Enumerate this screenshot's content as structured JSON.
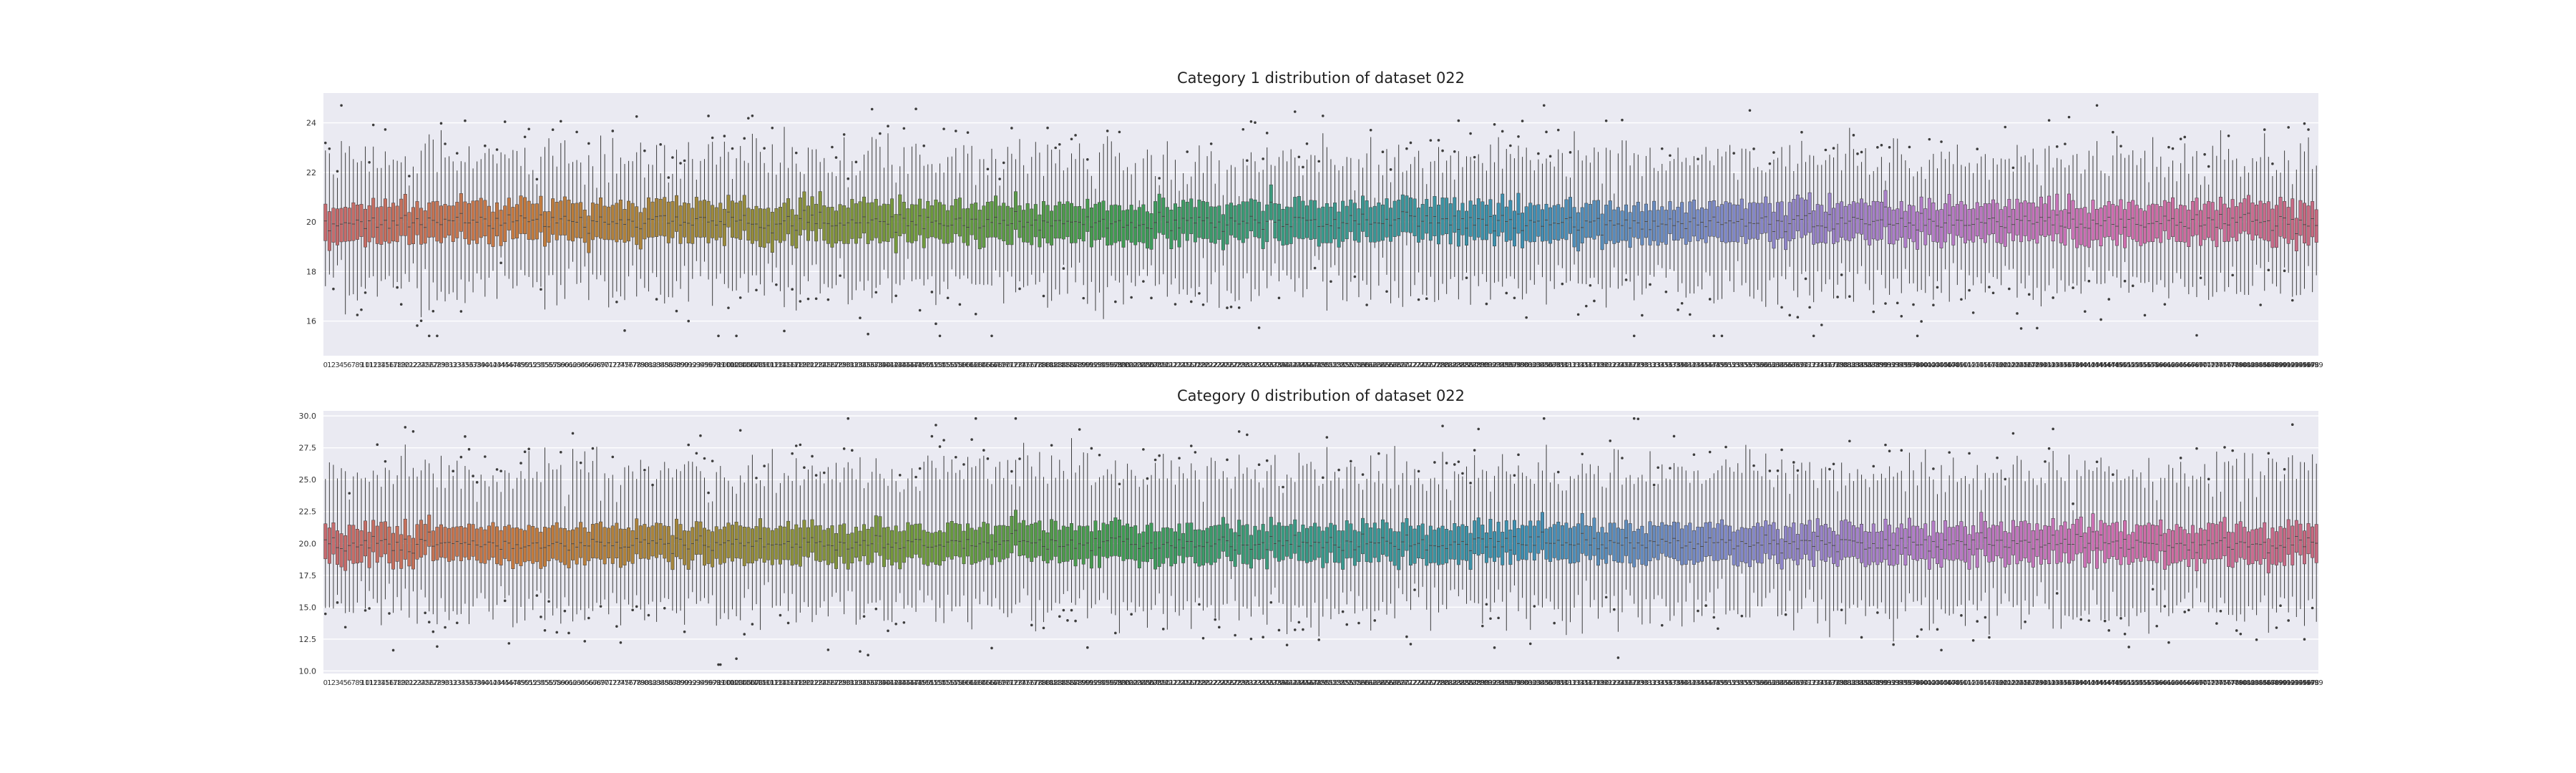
{
  "colors": {
    "background": "#ffffff",
    "axes_background": "#eaeaf2",
    "grid": "#ffffff",
    "whisker": "#3c3c3c",
    "palette_stops": [
      "#c76a6f",
      "#c47a3e",
      "#9a8a3b",
      "#6f9a3c",
      "#3f9a52",
      "#39998a",
      "#3d8fb1",
      "#7d89c8",
      "#b27cc8",
      "#cf6fb0",
      "#c76a7f"
    ]
  },
  "chart_data": [
    {
      "type": "boxplot",
      "title": "Category 1 distribution of dataset 022",
      "xlabel": "",
      "ylabel": "",
      "n_boxes": 500,
      "x_ticks_start": 0,
      "x_ticks_end": 499,
      "ylim": [
        14.6,
        25.2
      ],
      "yticks": [
        16,
        18,
        20,
        22,
        24
      ],
      "grid": true,
      "summary": {
        "median_approx": 20.0,
        "q1_approx": 19.3,
        "q3_approx": 20.7,
        "whisker_low_approx": 17.5,
        "whisker_high_approx": 22.5,
        "max_outlier": 24.7,
        "min_outlier": 15.4
      }
    },
    {
      "type": "boxplot",
      "title": "Category 0 distribution of dataset 022",
      "xlabel": "",
      "ylabel": "",
      "n_boxes": 500,
      "x_ticks_start": 0,
      "x_ticks_end": 499,
      "ylim": [
        9.8,
        30.4
      ],
      "yticks": [
        10.0,
        12.5,
        15.0,
        17.5,
        20.0,
        22.5,
        25.0,
        27.5,
        30.0
      ],
      "grid": true,
      "summary": {
        "median_approx": 20.0,
        "q1_approx": 18.7,
        "q3_approx": 21.3,
        "whisker_low_approx": 15.0,
        "whisker_high_approx": 25.5,
        "max_outlier": 29.8,
        "min_outlier": 10.5
      }
    }
  ]
}
